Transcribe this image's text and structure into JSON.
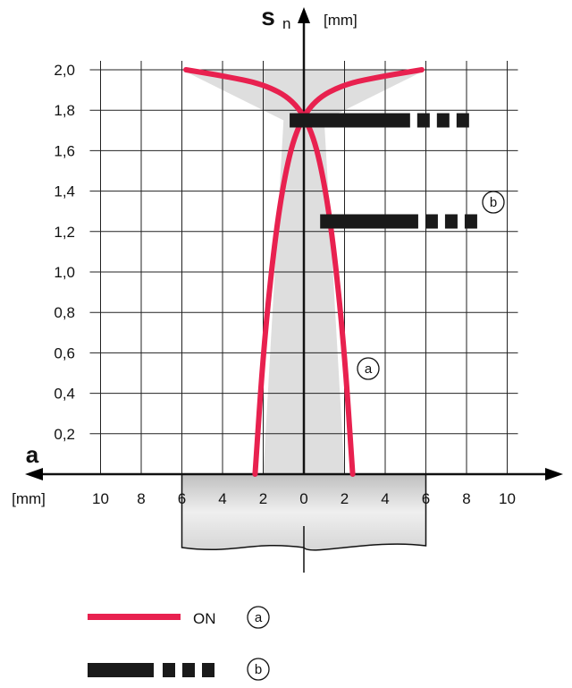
{
  "chart_data": {
    "type": "line",
    "y_axis": {
      "symbol": "s",
      "subscript": "n",
      "unit": "[mm]",
      "range": [
        0,
        2.0
      ],
      "ticks": [
        "0,2",
        "0,4",
        "0,6",
        "0,8",
        "1,0",
        "1,2",
        "1,4",
        "1,6",
        "1,8",
        "2,0"
      ]
    },
    "x_axis": {
      "symbol": "a",
      "unit": "[mm]",
      "range": [
        -10,
        10
      ],
      "tick_labels": [
        {
          "x": -10,
          "label": "10"
        },
        {
          "x": -8,
          "label": "8"
        },
        {
          "x": -6,
          "label": "6"
        },
        {
          "x": -4,
          "label": "4"
        },
        {
          "x": -2,
          "label": "2"
        },
        {
          "x": 0,
          "label": "0"
        },
        {
          "x": 2,
          "label": "2"
        },
        {
          "x": 4,
          "label": "4"
        },
        {
          "x": 6,
          "label": "6"
        },
        {
          "x": 8,
          "label": "8"
        },
        {
          "x": 10,
          "label": "10"
        }
      ]
    },
    "grid": true,
    "series": [
      {
        "id": "a",
        "name": "ON",
        "color": "#e8214f",
        "style": "solid",
        "left_curve": [
          [
            -2.4,
            0
          ],
          [
            -2.0,
            0.6
          ],
          [
            -1.5,
            1.1
          ],
          [
            -1.0,
            1.45
          ],
          [
            -0.4,
            1.7
          ],
          [
            0.5,
            1.85
          ],
          [
            2.0,
            1.93
          ],
          [
            4.0,
            1.97
          ],
          [
            5.8,
            2.0
          ]
        ],
        "right_curve": [
          [
            2.4,
            0
          ],
          [
            2.0,
            0.6
          ],
          [
            1.5,
            1.1
          ],
          [
            1.0,
            1.45
          ],
          [
            0.4,
            1.7
          ],
          [
            -0.5,
            1.85
          ],
          [
            -2.0,
            1.93
          ],
          [
            -4.0,
            1.97
          ],
          [
            -5.8,
            2.0
          ]
        ]
      },
      {
        "id": "b",
        "color": "#1a1a1a",
        "style": "thick dashed",
        "lines": [
          {
            "y": 1.75,
            "x_start": -0.7,
            "x_end": 8.3
          },
          {
            "y": 1.25,
            "x_start": 0.8,
            "x_end": 8.7
          }
        ]
      }
    ],
    "shaded_region": {
      "color": "#dedede",
      "polygon": [
        [
          -6,
          2.0
        ],
        [
          6,
          2.0
        ],
        [
          1,
          1.75
        ],
        [
          2,
          0
        ],
        [
          -2,
          0
        ],
        [
          -1,
          1.75
        ]
      ]
    },
    "callouts": [
      "a",
      "b"
    ]
  },
  "legend": [
    {
      "series": "a",
      "label": "ON",
      "marker": "a",
      "color": "#e8214f"
    },
    {
      "series": "b",
      "label": "",
      "marker": "b",
      "color": "#1a1a1a"
    }
  ]
}
